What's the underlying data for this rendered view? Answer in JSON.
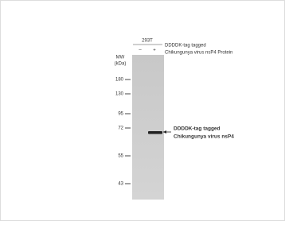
{
  "sample": {
    "cell_line": "293T",
    "lanes": [
      "–",
      "+"
    ],
    "treatment_line1": "DDDDK-tag tagged",
    "treatment_line2": "Chikungunya virus nsP4 Protein"
  },
  "mw_axis": {
    "title": "MW",
    "unit": "(kDa)",
    "markers": [
      "180",
      "130",
      "95",
      "72",
      "55",
      "43"
    ]
  },
  "band_label": {
    "line1": "DDDDK-tag  tagged",
    "line2": "Chikungunya virus nsP4"
  }
}
